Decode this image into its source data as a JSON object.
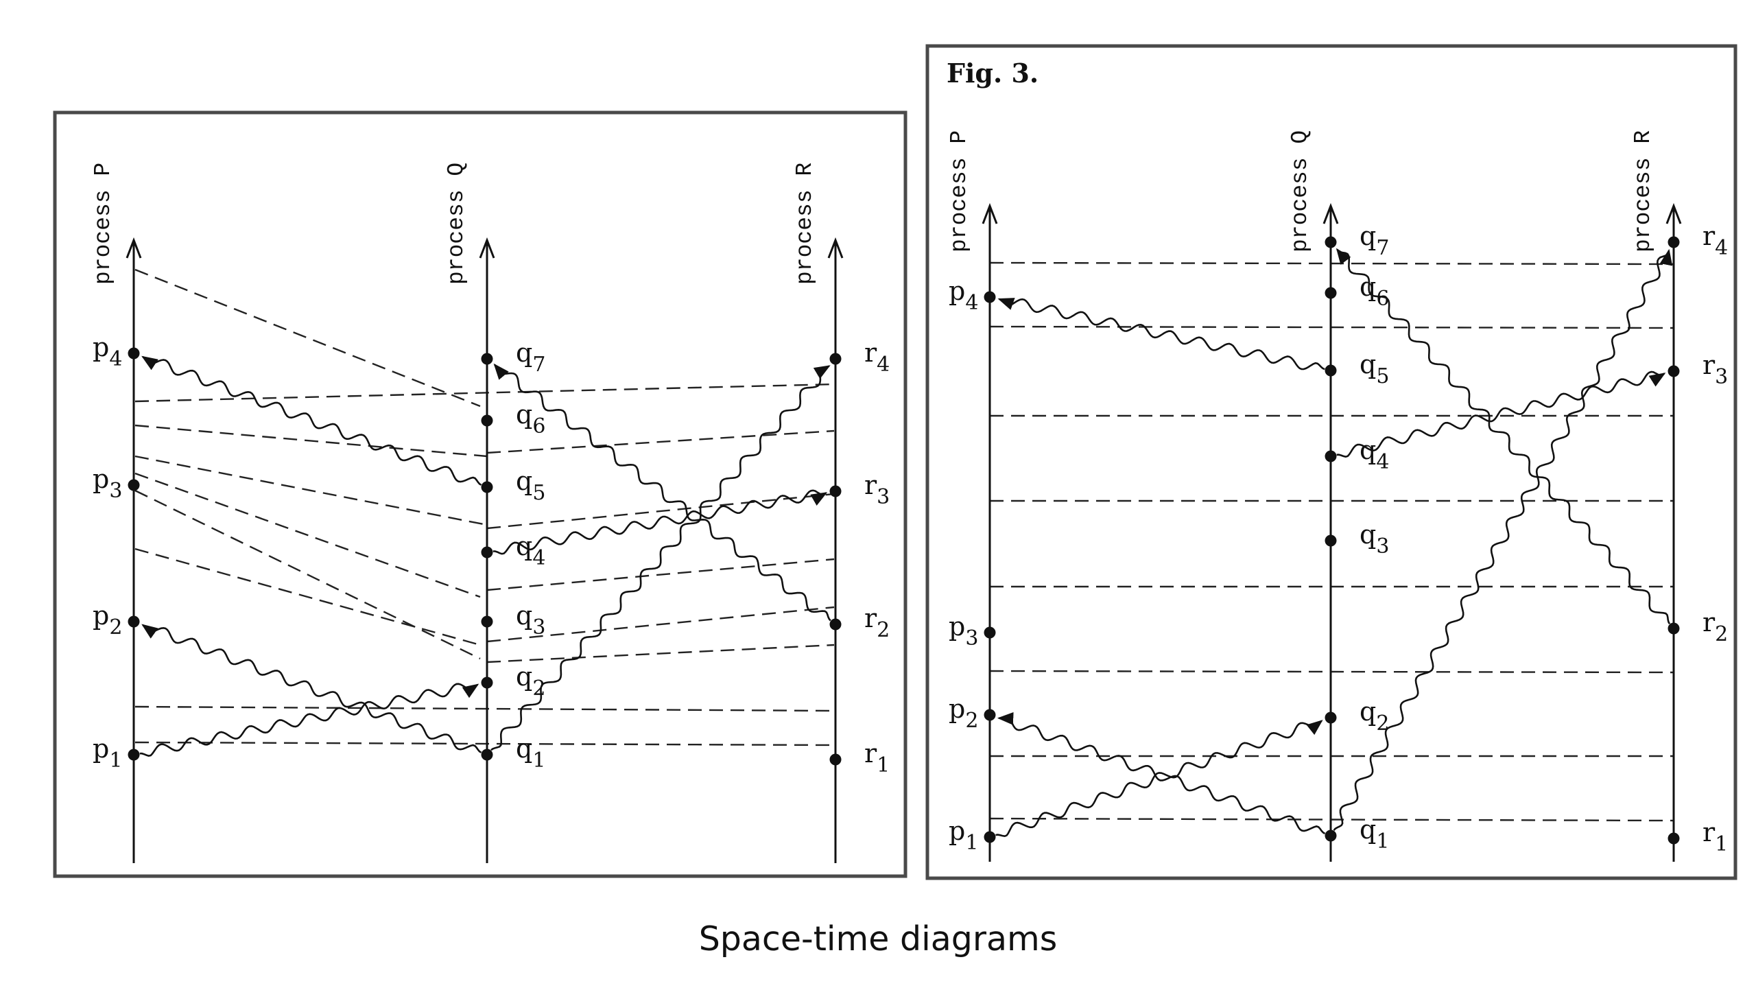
{
  "caption": "Space-time diagrams",
  "diagrams": [
    {
      "id": "left",
      "fig_label": "",
      "processes": [
        {
          "name": "process P",
          "events": [
            "p1",
            "p2",
            "p3",
            "p4"
          ]
        },
        {
          "name": "process Q",
          "events": [
            "q1",
            "q2",
            "q3",
            "q4",
            "q5",
            "q6",
            "q7"
          ]
        },
        {
          "name": "process R",
          "events": [
            "r1",
            "r2",
            "r3",
            "r4"
          ]
        }
      ],
      "messages": [
        {
          "from": "p1",
          "to": "q2"
        },
        {
          "from": "q1",
          "to": "p2"
        },
        {
          "from": "q1",
          "to": "r4"
        },
        {
          "from": "q4",
          "to": "r3"
        },
        {
          "from": "q5",
          "to": "p4"
        },
        {
          "from": "r2",
          "to": "q7"
        }
      ]
    },
    {
      "id": "right",
      "fig_label": "Fig. 3.",
      "processes": [
        {
          "name": "process P",
          "events": [
            "p1",
            "p2",
            "p3",
            "p4"
          ]
        },
        {
          "name": "process Q",
          "events": [
            "q1",
            "q2",
            "q3",
            "q4",
            "q5",
            "q6",
            "q7"
          ]
        },
        {
          "name": "process R",
          "events": [
            "r1",
            "r2",
            "r3",
            "r4"
          ]
        }
      ],
      "messages": [
        {
          "from": "p1",
          "to": "q2"
        },
        {
          "from": "q1",
          "to": "p2"
        },
        {
          "from": "q1",
          "to": "r4"
        },
        {
          "from": "q4",
          "to": "r3"
        },
        {
          "from": "q5",
          "to": "p4"
        },
        {
          "from": "r2",
          "to": "q7"
        }
      ]
    }
  ]
}
